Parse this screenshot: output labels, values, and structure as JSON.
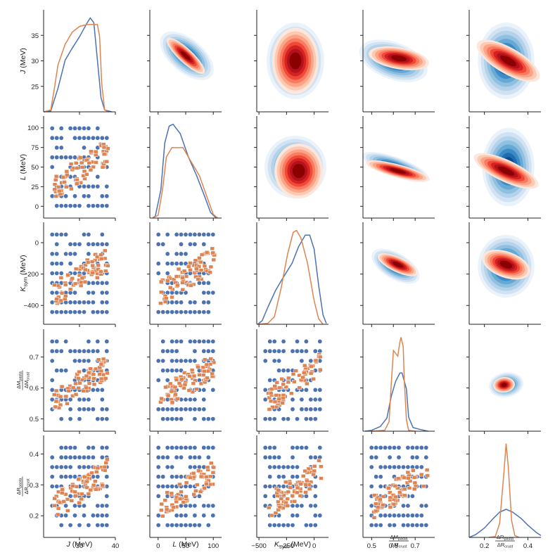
{
  "chart_data": {
    "type": "pairplot",
    "variables": [
      {
        "key": "J",
        "main": "J",
        "sub": "",
        "unit": "(MeV)",
        "range": [
          20,
          40
        ]
      },
      {
        "key": "L",
        "main": "L",
        "sub": "",
        "unit": "(MeV)",
        "range": [
          -15,
          115
        ]
      },
      {
        "key": "Ksym",
        "main": "K",
        "sub": "sym",
        "unit": "(MeV)",
        "range": [
          -520,
          130
        ]
      },
      {
        "key": "dMfrac",
        "frac": true,
        "num_main": "ΔM",
        "num_sub": "pasta",
        "den_main": "ΔM",
        "den_sub": "crust",
        "range": [
          0.46,
          0.79
        ]
      },
      {
        "key": "dRfrac",
        "frac": true,
        "num_main": "ΔR",
        "num_sub": "pasta",
        "den_main": "ΔR",
        "den_sub": "crust",
        "range": [
          0.13,
          0.46
        ]
      }
    ],
    "series": [
      {
        "name": "blue",
        "color": "#4c72b0",
        "marker": "circle",
        "colormap": "Blues"
      },
      {
        "name": "orange",
        "color": "#dd8452",
        "marker": "square",
        "colormap": "Reds"
      }
    ],
    "y_ticks": [
      {
        "row": 0,
        "values": [
          25,
          30,
          35
        ],
        "labels": [
          "25",
          "30",
          "35"
        ]
      },
      {
        "row": 1,
        "values": [
          0,
          25,
          50,
          75,
          100
        ],
        "labels": [
          "0",
          "25",
          "50",
          "75",
          "100"
        ]
      },
      {
        "row": 2,
        "values": [
          -400,
          -200,
          0
        ],
        "labels": [
          "−400",
          "−200",
          "0"
        ]
      },
      {
        "row": 3,
        "values": [
          0.5,
          0.6,
          0.7
        ],
        "labels": [
          "0.5",
          "0.6",
          "0.7"
        ]
      },
      {
        "row": 4,
        "values": [
          0.2,
          0.3,
          0.4
        ],
        "labels": [
          "0.2",
          "0.3",
          "0.4"
        ]
      }
    ],
    "x_ticks": [
      {
        "col": 0,
        "values": [
          30,
          40
        ],
        "labels": [
          "30",
          "40"
        ]
      },
      {
        "col": 1,
        "values": [
          0,
          50,
          100
        ],
        "labels": [
          "0",
          "50",
          "100"
        ]
      },
      {
        "col": 2,
        "values": [
          -500,
          -250,
          0
        ],
        "labels": [
          "−500",
          "−250",
          "0"
        ]
      },
      {
        "col": 3,
        "values": [
          0.5,
          0.6,
          0.7
        ],
        "labels": [
          "0.5",
          "0.6",
          "0.7"
        ]
      },
      {
        "col": 4,
        "values": [
          0.2,
          0.4
        ],
        "labels": [
          "0.2",
          "0.4"
        ]
      }
    ],
    "kde_diag": [
      {
        "var": 0,
        "blue": [
          [
            20,
            0
          ],
          [
            22,
            0.01
          ],
          [
            24,
            0.25
          ],
          [
            26,
            0.55
          ],
          [
            28,
            0.68
          ],
          [
            30,
            0.8
          ],
          [
            32,
            0.94
          ],
          [
            33,
            1.0
          ],
          [
            34,
            0.95
          ],
          [
            35,
            0.55
          ],
          [
            36,
            0.15
          ],
          [
            37,
            0.02
          ],
          [
            39,
            0
          ]
        ],
        "orange": [
          [
            20,
            0
          ],
          [
            22,
            0.02
          ],
          [
            23,
            0.25
          ],
          [
            24,
            0.5
          ],
          [
            26,
            0.72
          ],
          [
            28,
            0.85
          ],
          [
            30,
            0.91
          ],
          [
            32,
            0.93
          ],
          [
            35,
            0.93
          ],
          [
            35.6,
            0.8
          ],
          [
            36.2,
            0.3
          ],
          [
            37,
            0.02
          ],
          [
            38,
            0
          ]
        ]
      },
      {
        "var": 1,
        "blue": [
          [
            -10,
            0
          ],
          [
            -5,
            0.02
          ],
          [
            5,
            0.3
          ],
          [
            12,
            0.8
          ],
          [
            20,
            0.98
          ],
          [
            27,
            1.0
          ],
          [
            40,
            0.9
          ],
          [
            55,
            0.65
          ],
          [
            70,
            0.45
          ],
          [
            85,
            0.22
          ],
          [
            95,
            0.06
          ],
          [
            105,
            0
          ]
        ],
        "orange": [
          [
            -10,
            0
          ],
          [
            0,
            0.03
          ],
          [
            8,
            0.3
          ],
          [
            15,
            0.65
          ],
          [
            25,
            0.75
          ],
          [
            45,
            0.75
          ],
          [
            60,
            0.6
          ],
          [
            75,
            0.45
          ],
          [
            90,
            0.2
          ],
          [
            100,
            0.04
          ],
          [
            108,
            0
          ]
        ]
      },
      {
        "var": 2,
        "blue": [
          [
            -510,
            0
          ],
          [
            -470,
            0.04
          ],
          [
            -420,
            0.18
          ],
          [
            -350,
            0.36
          ],
          [
            -280,
            0.5
          ],
          [
            -200,
            0.65
          ],
          [
            -140,
            0.83
          ],
          [
            -80,
            0.95
          ],
          [
            -40,
            0.95
          ],
          [
            0,
            0.8
          ],
          [
            40,
            0.42
          ],
          [
            80,
            0.1
          ],
          [
            110,
            0.01
          ]
        ],
        "orange": [
          [
            -510,
            0
          ],
          [
            -420,
            0.01
          ],
          [
            -360,
            0.08
          ],
          [
            -300,
            0.38
          ],
          [
            -240,
            0.75
          ],
          [
            -190,
            0.98
          ],
          [
            -160,
            1.0
          ],
          [
            -120,
            0.92
          ],
          [
            -60,
            0.65
          ],
          [
            0,
            0.25
          ],
          [
            40,
            0.06
          ],
          [
            80,
            0
          ]
        ]
      },
      {
        "var": 3,
        "blue": [
          [
            0.47,
            0
          ],
          [
            0.5,
            0.01
          ],
          [
            0.54,
            0.05
          ],
          [
            0.57,
            0.14
          ],
          [
            0.59,
            0.37
          ],
          [
            0.61,
            0.53
          ],
          [
            0.63,
            0.62
          ],
          [
            0.64,
            0.62
          ],
          [
            0.66,
            0.45
          ],
          [
            0.67,
            0.15
          ],
          [
            0.69,
            0.04
          ],
          [
            0.72,
            0.02
          ],
          [
            0.76,
            0
          ]
        ],
        "orange": [
          [
            0.5,
            0
          ],
          [
            0.56,
            0.01
          ],
          [
            0.58,
            0.1
          ],
          [
            0.59,
            0.5
          ],
          [
            0.6,
            0.86
          ],
          [
            0.61,
            0.83
          ],
          [
            0.62,
            0.8
          ],
          [
            0.63,
            0.95
          ],
          [
            0.635,
            1.0
          ],
          [
            0.645,
            0.9
          ],
          [
            0.65,
            0.55
          ],
          [
            0.66,
            0.12
          ],
          [
            0.67,
            0.01
          ],
          [
            0.7,
            0
          ]
        ]
      },
      {
        "var": 4,
        "blue": [
          [
            0.13,
            0
          ],
          [
            0.16,
            0.03
          ],
          [
            0.2,
            0.1
          ],
          [
            0.24,
            0.2
          ],
          [
            0.27,
            0.27
          ],
          [
            0.3,
            0.3
          ],
          [
            0.33,
            0.27
          ],
          [
            0.37,
            0.2
          ],
          [
            0.4,
            0.13
          ],
          [
            0.44,
            0.05
          ],
          [
            0.46,
            0.02
          ]
        ],
        "orange": [
          [
            0.22,
            0
          ],
          [
            0.25,
            0.01
          ],
          [
            0.27,
            0.15
          ],
          [
            0.29,
            0.7
          ],
          [
            0.3,
            1.0
          ],
          [
            0.31,
            0.75
          ],
          [
            0.325,
            0.18
          ],
          [
            0.34,
            0.02
          ],
          [
            0.36,
            0
          ]
        ]
      }
    ],
    "kde_upper": [
      {
        "row": 0,
        "col": 1,
        "blue": [
          {
            "x": [
              -10,
              110
            ],
            "y": [
              20,
              38
            ],
            "cx": 52,
            "cy": 31,
            "rx": 58,
            "ry": 3.3,
            "ang": 40
          }
        ],
        "orange": [
          {
            "cx": 50,
            "cy": 31,
            "rx": 46,
            "ry": 1.4,
            "ang": 43
          }
        ]
      },
      {
        "row": 0,
        "col": 2,
        "blue": [
          {
            "cx": -170,
            "cy": 30,
            "rx": 260,
            "ry": 7.5,
            "ang": 0
          }
        ],
        "orange": [
          {
            "cx": -170,
            "cy": 30,
            "rx": 210,
            "ry": 6.5,
            "ang": 0
          }
        ]
      },
      {
        "row": 0,
        "col": 3,
        "blue": [
          {
            "cx": 0.6,
            "cy": 30,
            "rx": 0.085,
            "ry": 7,
            "ang": -70
          }
        ],
        "orange": [
          {
            "cx": 0.625,
            "cy": 30.5,
            "rx": 0.05,
            "ry": 6,
            "ang": -80
          }
        ]
      },
      {
        "row": 0,
        "col": 4,
        "blue": [
          {
            "cx": 0.3,
            "cy": 30,
            "rx": 0.13,
            "ry": 7.5,
            "ang": 0
          }
        ],
        "orange": [
          {
            "cx": 0.31,
            "cy": 30,
            "rx": 0.06,
            "ry": 7,
            "ang": -60
          }
        ]
      },
      {
        "row": 1,
        "col": 2,
        "blue": [
          {
            "cx": -170,
            "cy": 50,
            "rx": 280,
            "ry": 40,
            "ang": 0
          }
        ],
        "orange": [
          {
            "cx": -140,
            "cy": 45,
            "rx": 220,
            "ry": 35,
            "ang": 0
          }
        ]
      },
      {
        "row": 1,
        "col": 3,
        "blue": [
          {
            "cx": 0.61,
            "cy": 50,
            "rx": 0.045,
            "ry": 45,
            "ang": -70
          }
        ],
        "orange": [
          {
            "cx": 0.62,
            "cy": 45,
            "rx": 0.03,
            "ry": 42,
            "ang": -75
          }
        ]
      },
      {
        "row": 1,
        "col": 4,
        "blue": [
          {
            "cx": 0.31,
            "cy": 50,
            "rx": 0.12,
            "ry": 50,
            "ang": 0
          }
        ],
        "orange": [
          {
            "cx": 0.3,
            "cy": 45,
            "rx": 0.05,
            "ry": 45,
            "ang": -65
          }
        ]
      },
      {
        "row": 2,
        "col": 3,
        "blue": [
          {
            "cx": 0.61,
            "cy": -150,
            "rx": 0.06,
            "ry": 170,
            "ang": -60
          }
        ],
        "orange": [
          {
            "cx": 0.62,
            "cy": -140,
            "rx": 0.035,
            "ry": 140,
            "ang": -65
          }
        ]
      },
      {
        "row": 2,
        "col": 4,
        "blue": [
          {
            "cx": 0.3,
            "cy": -150,
            "rx": 0.13,
            "ry": 200,
            "ang": 0
          }
        ],
        "orange": [
          {
            "cx": 0.3,
            "cy": -140,
            "rx": 0.06,
            "ry": 160,
            "ang": -70
          }
        ]
      },
      {
        "row": 3,
        "col": 4,
        "blue": [
          {
            "cx": 0.3,
            "cy": 0.61,
            "rx": 0.08,
            "ry": 0.04,
            "ang": -10
          }
        ],
        "orange": [
          {
            "cx": 0.29,
            "cy": 0.61,
            "rx": 0.05,
            "ry": 0.025,
            "ang": -5
          }
        ]
      }
    ]
  }
}
